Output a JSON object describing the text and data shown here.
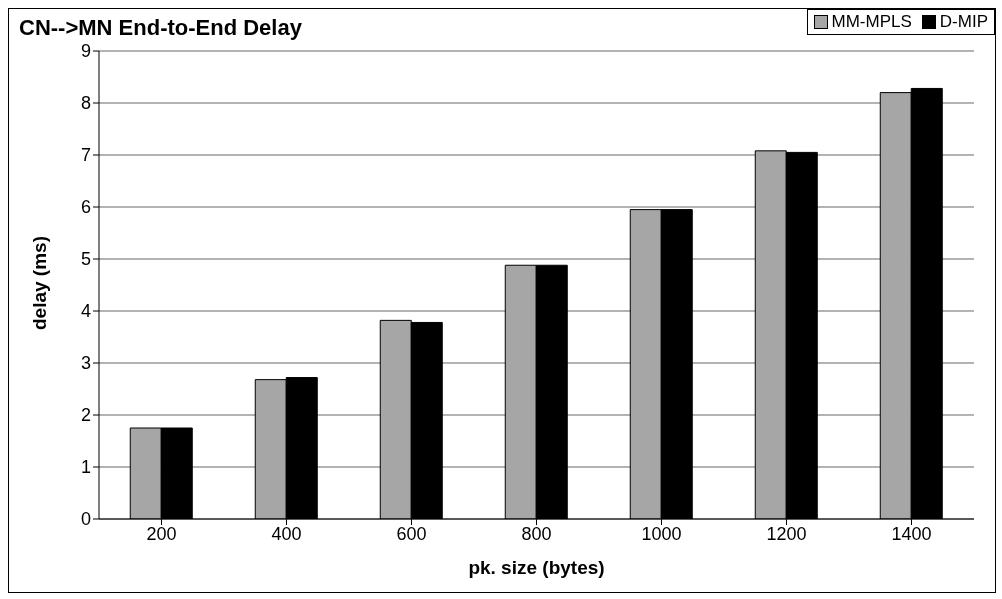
{
  "chart_data": {
    "type": "bar",
    "title": "CN-->MN End-to-End Delay",
    "xlabel": "pk. size (bytes)",
    "ylabel": "delay (ms)",
    "categories": [
      "200",
      "400",
      "600",
      "800",
      "1000",
      "1200",
      "1400"
    ],
    "series": [
      {
        "name": "MM-MPLS",
        "color": "#a6a6a6",
        "values": [
          1.75,
          2.68,
          3.82,
          4.88,
          5.95,
          7.08,
          8.2
        ]
      },
      {
        "name": "D-MIP",
        "color": "#000000",
        "values": [
          1.75,
          2.72,
          3.78,
          4.88,
          5.95,
          7.05,
          8.28
        ]
      }
    ],
    "ylim": [
      0,
      9
    ],
    "yticks": [
      0,
      1,
      2,
      3,
      4,
      5,
      6,
      7,
      8,
      9
    ],
    "grid": "y",
    "legend": "top right"
  }
}
